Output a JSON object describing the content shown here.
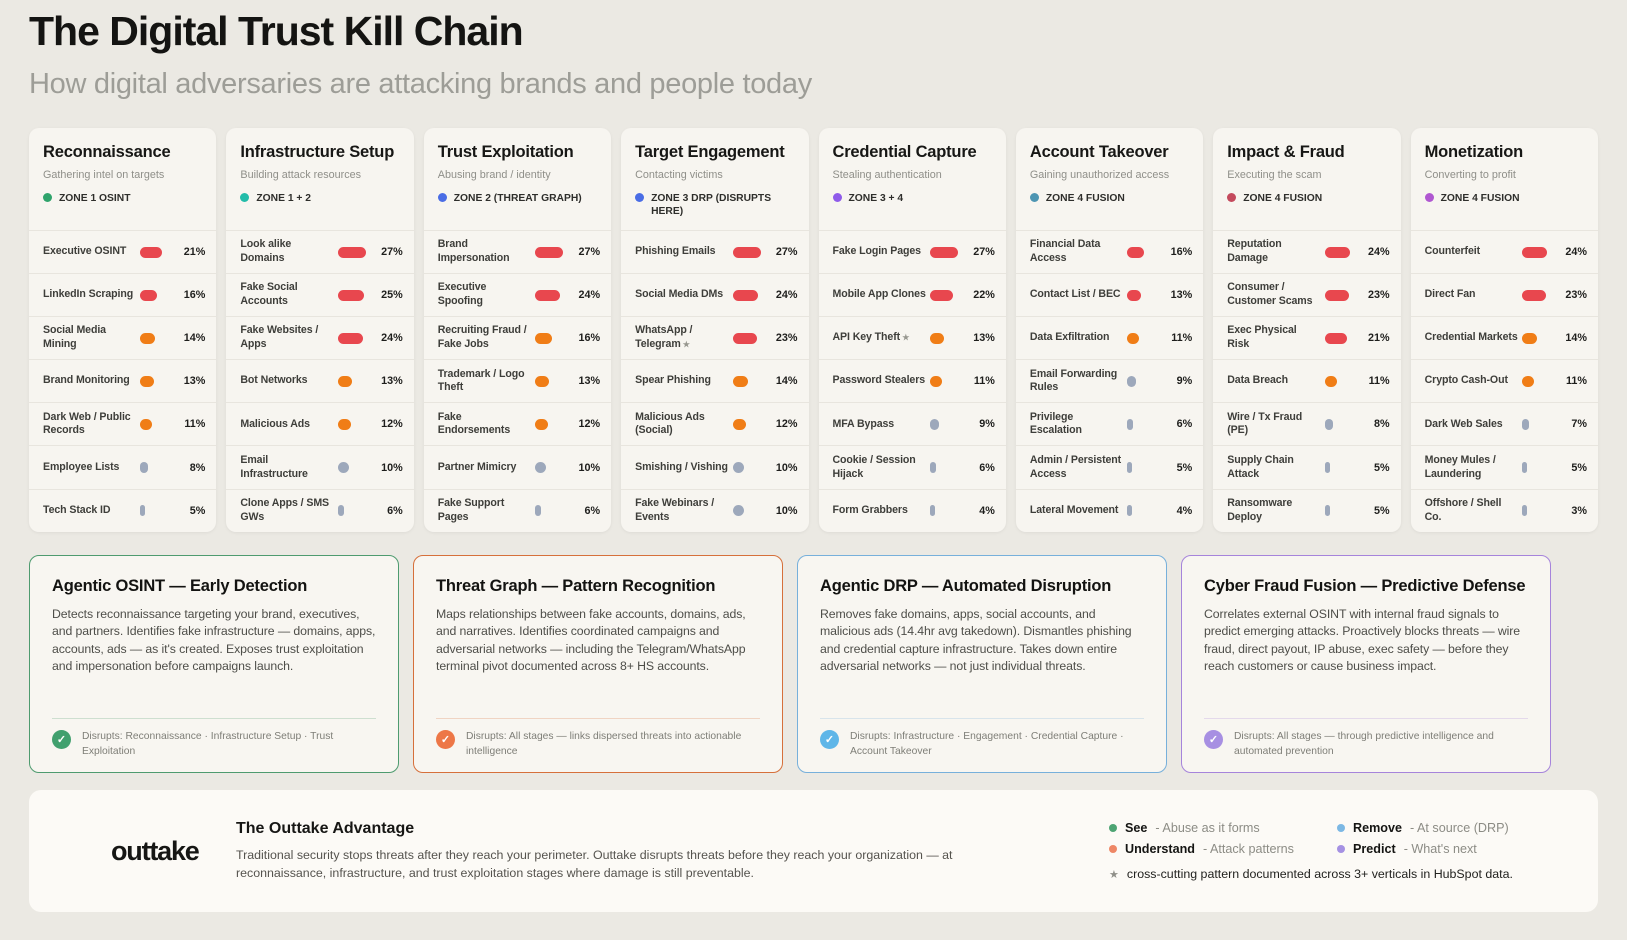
{
  "page": {
    "title": "The Digital Trust Kill Chain",
    "subtitle": "How digital adversaries are attacking brands and people today"
  },
  "colors": {
    "bar_high": "#E8474E",
    "bar_mid": "#F07D16",
    "bar_low": "#9DA8BB"
  },
  "chart_data": [
    {
      "type": "bar",
      "title": "Reconnaissance",
      "subtitle": "Gathering intel on targets",
      "zone": "ZONE 1 OSINT",
      "zone_color": "#2FA36B",
      "unit": "%",
      "categories": [
        "Executive OSINT",
        "LinkedIn Scraping",
        "Social Media Mining",
        "Brand Monitoring",
        "Dark Web / Public Records",
        "Employee Lists",
        "Tech Stack ID"
      ],
      "values": [
        21,
        16,
        14,
        13,
        11,
        8,
        5
      ],
      "levels": [
        "high",
        "high",
        "mid",
        "mid",
        "mid",
        "low",
        "low"
      ],
      "stars": [
        false,
        false,
        false,
        false,
        false,
        false,
        false
      ]
    },
    {
      "type": "bar",
      "title": "Infrastructure Setup",
      "subtitle": "Building attack resources",
      "zone": "ZONE 1 + 2",
      "zone_color": "#23BCA9",
      "unit": "%",
      "categories": [
        "Look alike Domains",
        "Fake Social Accounts",
        "Fake Websites / Apps",
        "Bot Networks",
        "Malicious Ads",
        "Email Infrastructure",
        "Clone Apps / SMS GWs"
      ],
      "values": [
        27,
        25,
        24,
        13,
        12,
        10,
        6
      ],
      "levels": [
        "high",
        "high",
        "high",
        "mid",
        "mid",
        "low",
        "low"
      ],
      "stars": [
        false,
        false,
        false,
        false,
        false,
        false,
        false
      ]
    },
    {
      "type": "bar",
      "title": "Trust Exploitation",
      "subtitle": "Abusing brand / identity",
      "zone": "ZONE 2 (THREAT GRAPH)",
      "zone_color": "#4A6DE5",
      "unit": "%",
      "categories": [
        "Brand Impersonation",
        "Executive Spoofing",
        "Recruiting Fraud / Fake Jobs",
        "Trademark / Logo Theft",
        "Fake Endorsements",
        "Partner Mimicry",
        "Fake Support Pages"
      ],
      "values": [
        27,
        24,
        16,
        13,
        12,
        10,
        6
      ],
      "levels": [
        "high",
        "high",
        "mid",
        "mid",
        "mid",
        "low",
        "low"
      ],
      "stars": [
        false,
        false,
        false,
        false,
        false,
        false,
        false
      ]
    },
    {
      "type": "bar",
      "title": "Target Engagement",
      "subtitle": "Contacting victims",
      "zone": "ZONE 3 DRP (DISRUPTS HERE)",
      "zone_color": "#4A6DE5",
      "unit": "%",
      "categories": [
        "Phishing Emails",
        "Social Media DMs",
        "WhatsApp / Telegram",
        "Spear Phishing",
        "Malicious Ads (Social)",
        "Smishing / Vishing",
        "Fake Webinars / Events"
      ],
      "values": [
        27,
        24,
        23,
        14,
        12,
        10,
        10
      ],
      "levels": [
        "high",
        "high",
        "high",
        "mid",
        "mid",
        "low",
        "low"
      ],
      "stars": [
        false,
        false,
        true,
        false,
        false,
        false,
        false
      ]
    },
    {
      "type": "bar",
      "title": "Credential Capture",
      "subtitle": "Stealing authentication",
      "zone": "ZONE 3 + 4",
      "zone_color": "#8F5BEA",
      "unit": "%",
      "categories": [
        "Fake Login Pages",
        "Mobile App Clones",
        "API Key Theft",
        "Password Stealers",
        "MFA Bypass",
        "Cookie / Session Hijack",
        "Form Grabbers"
      ],
      "values": [
        27,
        22,
        13,
        11,
        9,
        6,
        4
      ],
      "levels": [
        "high",
        "high",
        "mid",
        "mid",
        "low",
        "low",
        "low"
      ],
      "stars": [
        false,
        false,
        true,
        false,
        false,
        false,
        false
      ]
    },
    {
      "type": "bar",
      "title": "Account Takeover",
      "subtitle": "Gaining unauthorized access",
      "zone": "ZONE 4 FUSION",
      "zone_color": "#4D95B2",
      "unit": "%",
      "categories": [
        "Financial Data Access",
        "Contact List / BEC",
        "Data Exfiltration",
        "Email Forwarding Rules",
        "Privilege Escalation",
        "Admin / Persistent Access",
        "Lateral Movement"
      ],
      "values": [
        16,
        13,
        11,
        9,
        6,
        5,
        4
      ],
      "levels": [
        "high",
        "high",
        "mid",
        "low",
        "low",
        "low",
        "low"
      ],
      "stars": [
        false,
        false,
        false,
        false,
        false,
        false,
        false
      ]
    },
    {
      "type": "bar",
      "title": "Impact & Fraud",
      "subtitle": "Executing the scam",
      "zone": "ZONE 4 FUSION",
      "zone_color": "#C44A5D",
      "unit": "%",
      "categories": [
        "Reputation Damage",
        "Consumer / Customer Scams",
        "Exec Physical Risk",
        "Data Breach",
        "Wire / Tx Fraud (PE)",
        "Supply Chain Attack",
        "Ransomware Deploy"
      ],
      "values": [
        24,
        23,
        21,
        11,
        8,
        5,
        5
      ],
      "levels": [
        "high",
        "high",
        "high",
        "mid",
        "low",
        "low",
        "low"
      ],
      "stars": [
        false,
        false,
        false,
        false,
        false,
        false,
        false
      ]
    },
    {
      "type": "bar",
      "title": "Monetization",
      "subtitle": "Converting to profit",
      "zone": "ZONE 4 FUSION",
      "zone_color": "#B057D1",
      "unit": "%",
      "categories": [
        "Counterfeit",
        "Direct Fan",
        "Credential Markets",
        "Crypto Cash-Out",
        "Dark Web Sales",
        "Money Mules / Laundering",
        "Offshore / Shell Co."
      ],
      "values": [
        24,
        23,
        14,
        11,
        7,
        5,
        3
      ],
      "levels": [
        "high",
        "high",
        "mid",
        "mid",
        "low",
        "low",
        "low"
      ],
      "stars": [
        false,
        false,
        false,
        false,
        false,
        false,
        false
      ]
    }
  ],
  "solutions": [
    {
      "title": "Agentic OSINT — Early Detection",
      "body": "Detects reconnaissance targeting your brand, executives, and partners. Identifies fake infrastructure — domains, apps, accounts, ads — as it's created. Exposes trust exploitation and impersonation before campaigns launch.",
      "disrupts": "Disrupts: Reconnaissance · Infrastructure Setup · Trust Exploitation",
      "border_color": "#4E9B6F",
      "icon_color": "#41A06E",
      "check_glyph": "✓"
    },
    {
      "title": "Threat Graph — Pattern Recognition",
      "body": "Maps relationships between fake accounts, domains, ads, and narratives. Identifies coordinated campaigns and adversarial networks — including the Telegram/WhatsApp terminal pivot documented across 8+ HS accounts.",
      "disrupts": "Disrupts: All stages — links dispersed threats into actionable intelligence",
      "border_color": "#D6703B",
      "icon_color": "#ED7747",
      "check_glyph": "✓"
    },
    {
      "title": "Agentic DRP — Automated Disruption",
      "body": "Removes fake domains, apps, social accounts, and malicious ads (14.4hr avg takedown). Dismantles phishing and credential capture infrastructure. Takes down entire adversarial networks — not just individual threats.",
      "disrupts": "Disrupts: Infrastructure · Engagement · Credential Capture · Account Takeover",
      "border_color": "#77B0DB",
      "icon_color": "#5FB6E8",
      "check_glyph": "✓"
    },
    {
      "title": "Cyber Fraud Fusion — Predictive Defense",
      "body": "Correlates external OSINT with internal fraud signals to predict emerging attacks. Proactively blocks threats — wire fraud, direct payout, IP abuse, exec safety — before they reach customers or cause business impact.",
      "disrupts": "Disrupts: All stages — through predictive intelligence and automated prevention",
      "border_color": "#A684DB",
      "icon_color": "#A78FE2",
      "check_glyph": "✓"
    }
  ],
  "footer": {
    "brand": "outtake",
    "title": "The Outtake Advantage",
    "body": "Traditional security stops threats after they reach your perimeter. Outtake disrupts threats before they reach your organization — at reconnaissance, infrastructure, and trust exploitation stages where damage is still preventable.",
    "legend": [
      {
        "word": "See",
        "desc": "Abuse as it forms",
        "color": "#4DA473"
      },
      {
        "word": "Remove",
        "desc": "At source (DRP)",
        "color": "#7CB8E4"
      },
      {
        "word": "Understand",
        "desc": "Attack patterns",
        "color": "#EE8766"
      },
      {
        "word": "Predict",
        "desc": "What's next",
        "color": "#A591E3"
      }
    ],
    "footnote_star": "★",
    "footnote": "cross-cutting pattern documented across 3+ verticals in HubSpot data."
  }
}
